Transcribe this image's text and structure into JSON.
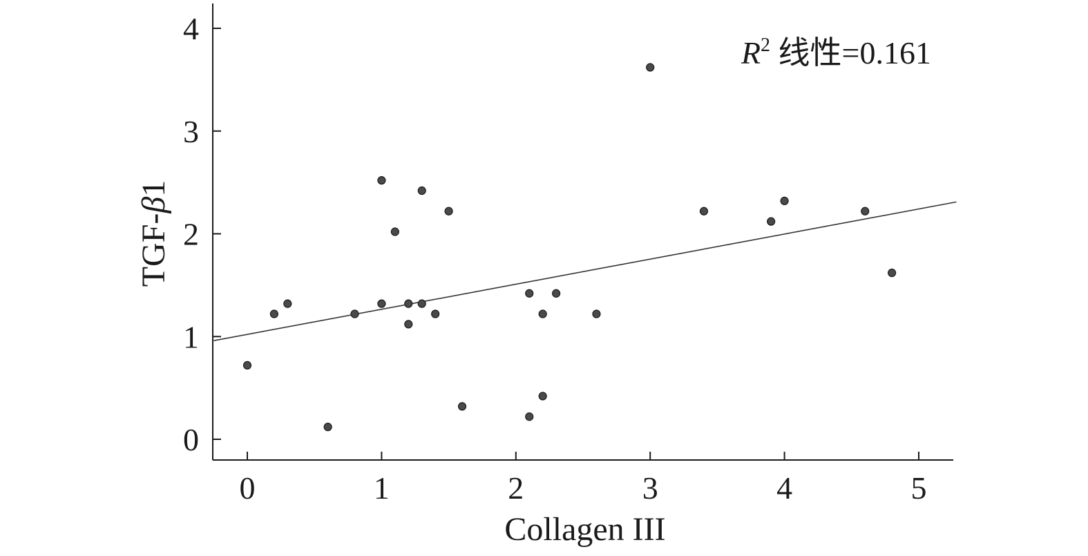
{
  "chart_data": {
    "type": "scatter",
    "title": "",
    "xlabel": "Collagen III",
    "ylabel_main": "TGF-",
    "ylabel_greek": "β",
    "ylabel_suffix": "1",
    "xlim": [
      -0.25,
      5.25
    ],
    "ylim": [
      -0.2,
      4.2
    ],
    "x_ticks": [
      0,
      1,
      2,
      3,
      4,
      5
    ],
    "y_ticks": [
      0,
      1,
      2,
      3,
      4
    ],
    "x_tick_labels": [
      "0",
      "1",
      "2",
      "3",
      "4",
      "5"
    ],
    "y_tick_labels": [
      "0",
      "1",
      "2",
      "3",
      "4"
    ],
    "grid": false,
    "annotation": {
      "r_symbol": "R",
      "superscript": "2",
      "text": " 线性=0.161",
      "position": "top-right"
    },
    "points": [
      {
        "x": 0.0,
        "y": 0.72
      },
      {
        "x": 0.2,
        "y": 1.22
      },
      {
        "x": 0.3,
        "y": 1.32
      },
      {
        "x": 0.6,
        "y": 0.12
      },
      {
        "x": 0.8,
        "y": 1.22
      },
      {
        "x": 1.0,
        "y": 2.52
      },
      {
        "x": 1.0,
        "y": 1.32
      },
      {
        "x": 1.1,
        "y": 2.02
      },
      {
        "x": 1.2,
        "y": 1.32
      },
      {
        "x": 1.2,
        "y": 1.12
      },
      {
        "x": 1.3,
        "y": 2.42
      },
      {
        "x": 1.3,
        "y": 1.32
      },
      {
        "x": 1.4,
        "y": 1.22
      },
      {
        "x": 1.5,
        "y": 2.22
      },
      {
        "x": 1.6,
        "y": 0.32
      },
      {
        "x": 2.1,
        "y": 1.42
      },
      {
        "x": 2.1,
        "y": 0.22
      },
      {
        "x": 2.2,
        "y": 1.22
      },
      {
        "x": 2.2,
        "y": 0.42
      },
      {
        "x": 2.3,
        "y": 1.42
      },
      {
        "x": 2.6,
        "y": 1.22
      },
      {
        "x": 3.0,
        "y": 3.62
      },
      {
        "x": 3.4,
        "y": 2.22
      },
      {
        "x": 3.9,
        "y": 2.12
      },
      {
        "x": 4.0,
        "y": 2.32
      },
      {
        "x": 4.6,
        "y": 2.22
      },
      {
        "x": 4.8,
        "y": 1.62
      }
    ],
    "fit_line": {
      "x": [
        -0.25,
        5.28
      ],
      "y": [
        0.96,
        2.31
      ]
    }
  }
}
